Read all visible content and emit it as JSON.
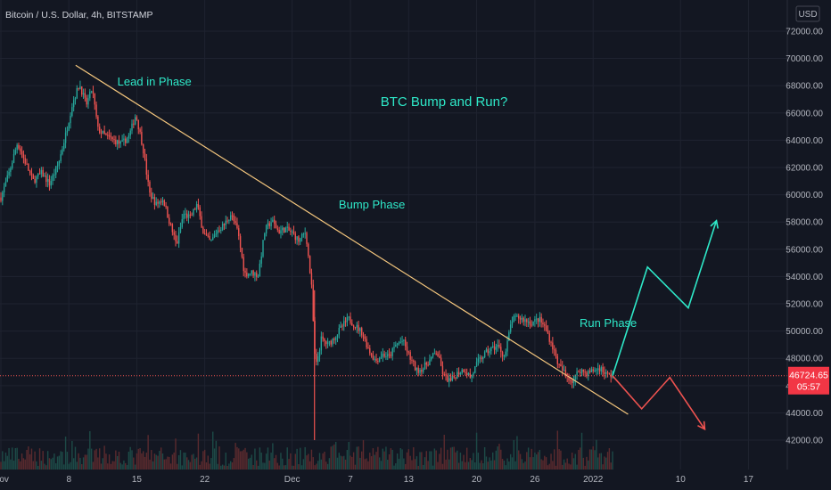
{
  "header": {
    "symbol": "Bitcoin / U.S. Dollar, 4h, BITSTAMP",
    "currency": "USD"
  },
  "colors": {
    "background": "#131722",
    "up": "#26a69a",
    "down": "#ef5350",
    "trendline": "#f5c77e",
    "projection_up": "#2ee8c8",
    "projection_down": "#ef5350",
    "annotation": "#2ee8c8",
    "price_badge": "#f23645"
  },
  "chart_data": {
    "type": "candlestick",
    "title": "",
    "xlabel": "",
    "ylabel": "",
    "ylim": [
      40500,
      73500
    ],
    "y_ticks": [
      "42000.00",
      "44000.00",
      "46000.00",
      "48000.00",
      "50000.00",
      "52000.00",
      "54000.00",
      "56000.00",
      "58000.00",
      "60000.00",
      "62000.00",
      "64000.00",
      "66000.00",
      "68000.00",
      "70000.00",
      "72000.00"
    ],
    "x_ticks": [
      "Nov",
      "8",
      "15",
      "22",
      "Dec",
      "7",
      "13",
      "20",
      "26",
      "2022",
      "10",
      "17"
    ],
    "x_tick_days": [
      1,
      8,
      15,
      22,
      31,
      37,
      43,
      50,
      56,
      62,
      71,
      78
    ],
    "x_range_days": [
      1,
      82
    ],
    "series_anchors": [
      {
        "day": 1.0,
        "price": 59800
      },
      {
        "day": 1.8,
        "price": 61500
      },
      {
        "day": 2.7,
        "price": 63800
      },
      {
        "day": 3.5,
        "price": 62400
      },
      {
        "day": 4.3,
        "price": 61000
      },
      {
        "day": 5.2,
        "price": 61600
      },
      {
        "day": 6.0,
        "price": 60800
      },
      {
        "day": 6.9,
        "price": 62200
      },
      {
        "day": 7.7,
        "price": 64500
      },
      {
        "day": 8.4,
        "price": 66800
      },
      {
        "day": 9.1,
        "price": 68100
      },
      {
        "day": 9.8,
        "price": 66600
      },
      {
        "day": 10.4,
        "price": 67800
      },
      {
        "day": 11.0,
        "price": 64800
      },
      {
        "day": 11.8,
        "price": 64300
      },
      {
        "day": 12.6,
        "price": 64000
      },
      {
        "day": 13.4,
        "price": 63700
      },
      {
        "day": 14.2,
        "price": 64300
      },
      {
        "day": 14.9,
        "price": 65900
      },
      {
        "day": 15.6,
        "price": 63600
      },
      {
        "day": 16.3,
        "price": 60100
      },
      {
        "day": 17.0,
        "price": 59300
      },
      {
        "day": 17.7,
        "price": 59700
      },
      {
        "day": 18.4,
        "price": 57900
      },
      {
        "day": 19.1,
        "price": 56300
      },
      {
        "day": 19.8,
        "price": 58600
      },
      {
        "day": 20.5,
        "price": 58300
      },
      {
        "day": 21.2,
        "price": 59300
      },
      {
        "day": 21.9,
        "price": 57100
      },
      {
        "day": 22.6,
        "price": 56500
      },
      {
        "day": 23.3,
        "price": 57400
      },
      {
        "day": 24.0,
        "price": 57800
      },
      {
        "day": 24.7,
        "price": 58600
      },
      {
        "day": 25.4,
        "price": 57300
      },
      {
        "day": 26.1,
        "price": 54200
      },
      {
        "day": 26.8,
        "price": 54300
      },
      {
        "day": 27.5,
        "price": 54100
      },
      {
        "day": 28.2,
        "price": 57400
      },
      {
        "day": 28.9,
        "price": 58100
      },
      {
        "day": 29.6,
        "price": 57300
      },
      {
        "day": 30.3,
        "price": 57500
      },
      {
        "day": 31.0,
        "price": 57200
      },
      {
        "day": 31.7,
        "price": 56600
      },
      {
        "day": 32.4,
        "price": 57300
      },
      {
        "day": 33.0,
        "price": 53200
      },
      {
        "day": 33.4,
        "price": 47200
      },
      {
        "day": 34.0,
        "price": 49400
      },
      {
        "day": 34.7,
        "price": 49000
      },
      {
        "day": 35.4,
        "price": 49600
      },
      {
        "day": 36.1,
        "price": 50300
      },
      {
        "day": 36.8,
        "price": 50900
      },
      {
        "day": 37.5,
        "price": 50400
      },
      {
        "day": 38.2,
        "price": 49900
      },
      {
        "day": 38.9,
        "price": 48600
      },
      {
        "day": 39.6,
        "price": 47800
      },
      {
        "day": 40.3,
        "price": 48300
      },
      {
        "day": 41.0,
        "price": 48100
      },
      {
        "day": 41.7,
        "price": 49000
      },
      {
        "day": 42.4,
        "price": 49300
      },
      {
        "day": 43.1,
        "price": 48100
      },
      {
        "day": 43.8,
        "price": 47100
      },
      {
        "day": 44.5,
        "price": 47300
      },
      {
        "day": 45.2,
        "price": 47900
      },
      {
        "day": 45.9,
        "price": 48500
      },
      {
        "day": 46.6,
        "price": 46700
      },
      {
        "day": 47.3,
        "price": 46300
      },
      {
        "day": 48.0,
        "price": 46900
      },
      {
        "day": 48.7,
        "price": 47200
      },
      {
        "day": 49.4,
        "price": 46600
      },
      {
        "day": 50.1,
        "price": 47700
      },
      {
        "day": 50.8,
        "price": 48300
      },
      {
        "day": 51.5,
        "price": 48700
      },
      {
        "day": 52.2,
        "price": 48900
      },
      {
        "day": 52.9,
        "price": 48100
      },
      {
        "day": 53.6,
        "price": 50800
      },
      {
        "day": 54.3,
        "price": 51000
      },
      {
        "day": 55.0,
        "price": 50800
      },
      {
        "day": 55.7,
        "price": 50600
      },
      {
        "day": 56.4,
        "price": 50900
      },
      {
        "day": 57.1,
        "price": 50200
      },
      {
        "day": 57.8,
        "price": 48900
      },
      {
        "day": 58.5,
        "price": 47400
      },
      {
        "day": 59.2,
        "price": 46800
      },
      {
        "day": 59.9,
        "price": 46300
      },
      {
        "day": 60.6,
        "price": 47200
      },
      {
        "day": 61.3,
        "price": 46900
      },
      {
        "day": 62.0,
        "price": 47100
      },
      {
        "day": 62.7,
        "price": 47300
      },
      {
        "day": 63.4,
        "price": 46800
      },
      {
        "day": 64.0,
        "price": 46724.65
      }
    ],
    "last_price": "46724.65",
    "countdown": "05:57",
    "trendline": {
      "start": {
        "day": 8.7,
        "price": 69500
      },
      "end": {
        "day": 65.6,
        "price": 43900
      }
    },
    "bullish_projection": [
      {
        "day": 64.0,
        "price": 46720
      },
      {
        "day": 67.6,
        "price": 54700
      },
      {
        "day": 71.8,
        "price": 51700
      },
      {
        "day": 74.7,
        "price": 58100
      }
    ],
    "bearish_projection": [
      {
        "day": 64.0,
        "price": 46720
      },
      {
        "day": 67.0,
        "price": 44300
      },
      {
        "day": 69.9,
        "price": 46600
      },
      {
        "day": 73.5,
        "price": 42800
      }
    ],
    "annotations": [
      {
        "text": "Lead in Phase",
        "day": 13.0,
        "price": 68000
      },
      {
        "text": "BTC Bump and Run?",
        "day": 40.1,
        "price": 66500,
        "role": "title"
      },
      {
        "text": "Bump Phase",
        "day": 35.8,
        "price": 59000
      },
      {
        "text": "Run Phase",
        "day": 60.6,
        "price": 50300
      }
    ]
  }
}
